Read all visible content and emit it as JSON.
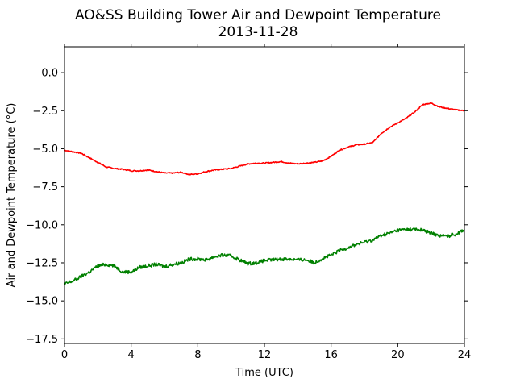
{
  "chart_data": {
    "type": "line",
    "title": "AO&SS Building Tower Air and Dewpoint Temperature",
    "subtitle": "2013-11-28",
    "xlabel": "Time (UTC)",
    "ylabel": "Air and Dewpoint Temperature (°C)",
    "xlim": [
      0,
      24
    ],
    "ylim": [
      -17.8,
      1.7
    ],
    "x_ticks": [
      0,
      4,
      8,
      12,
      16,
      20,
      24
    ],
    "x_tick_labels": [
      "0",
      "4",
      "8",
      "12",
      "16",
      "20",
      "24"
    ],
    "y_ticks": [
      0.0,
      -2.5,
      -5.0,
      -7.5,
      -10.0,
      -12.5,
      -15.0,
      -17.5
    ],
    "y_tick_labels": [
      "0.0",
      "−2.5",
      "−5.0",
      "−7.5",
      "−10.0",
      "−12.5",
      "−15.0",
      "−17.5"
    ],
    "grid": false,
    "legend": "none",
    "series": [
      {
        "color": "#ff0000",
        "x": [
          0,
          0.5,
          1,
          1.5,
          2,
          2.5,
          3,
          3.5,
          4,
          4.5,
          5,
          5.5,
          6,
          6.5,
          7,
          7.5,
          8,
          8.5,
          9,
          9.5,
          10,
          10.5,
          11,
          11.5,
          12,
          12.5,
          13,
          13.5,
          14,
          14.5,
          15,
          15.5,
          16,
          16.5,
          17,
          17.5,
          18,
          18.5,
          19,
          19.5,
          20,
          20.5,
          21,
          21.5,
          22,
          22.5,
          23,
          23.5,
          24
        ],
        "y": [
          -5.1,
          -5.2,
          -5.3,
          -5.6,
          -5.9,
          -6.2,
          -6.3,
          -6.35,
          -6.45,
          -6.45,
          -6.4,
          -6.5,
          -6.6,
          -6.6,
          -6.55,
          -6.7,
          -6.65,
          -6.5,
          -6.4,
          -6.35,
          -6.3,
          -6.15,
          -6.0,
          -5.95,
          -5.95,
          -5.9,
          -5.85,
          -5.95,
          -6.0,
          -5.95,
          -5.9,
          -5.8,
          -5.5,
          -5.1,
          -4.9,
          -4.75,
          -4.7,
          -4.6,
          -4.0,
          -3.6,
          -3.3,
          -3.0,
          -2.6,
          -2.1,
          -2.0,
          -2.25,
          -2.35,
          -2.45,
          -2.5
        ]
      },
      {
        "color": "#008000",
        "x": [
          0,
          0.5,
          1,
          1.5,
          2,
          2.5,
          3,
          3.5,
          4,
          4.5,
          5,
          5.5,
          6,
          6.5,
          7,
          7.5,
          8,
          8.5,
          9,
          9.5,
          10,
          10.5,
          11,
          11.5,
          12,
          12.5,
          13,
          13.5,
          14,
          14.5,
          15,
          15.5,
          16,
          16.5,
          17,
          17.5,
          18,
          18.5,
          19,
          19.5,
          20,
          20.5,
          21,
          21.5,
          22,
          22.5,
          23,
          23.5,
          24
        ],
        "y": [
          -13.9,
          -13.7,
          -13.4,
          -13.1,
          -12.7,
          -12.6,
          -12.7,
          -13.1,
          -13.1,
          -12.8,
          -12.7,
          -12.6,
          -12.75,
          -12.6,
          -12.5,
          -12.25,
          -12.25,
          -12.3,
          -12.1,
          -12.0,
          -12.05,
          -12.3,
          -12.55,
          -12.5,
          -12.35,
          -12.3,
          -12.25,
          -12.25,
          -12.3,
          -12.3,
          -12.5,
          -12.2,
          -12.0,
          -11.7,
          -11.5,
          -11.3,
          -11.15,
          -11.0,
          -10.7,
          -10.55,
          -10.35,
          -10.3,
          -10.3,
          -10.35,
          -10.55,
          -10.7,
          -10.75,
          -10.6,
          -10.3
        ]
      }
    ]
  }
}
